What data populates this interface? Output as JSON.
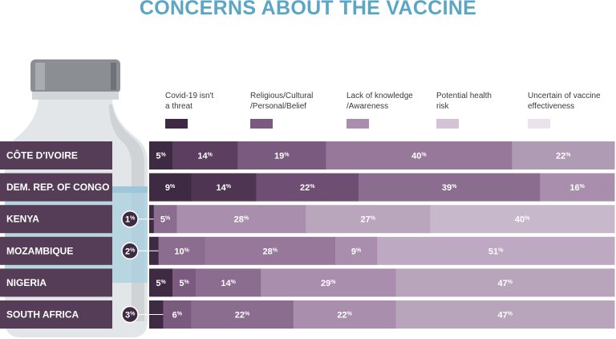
{
  "title": "CONCERNS ABOUT THE VACCINE",
  "chart_data": {
    "type": "bar",
    "orientation": "horizontal",
    "stacked": true,
    "title": "CONCERNS ABOUT THE VACCINE",
    "unit": "%",
    "legend_position": "top",
    "categories": [
      "CÔTE D'IVOIRE",
      "DEM. REP. OF CONGO",
      "KENYA",
      "MOZAMBIQUE",
      "NIGERIA",
      "SOUTH AFRICA"
    ],
    "series": [
      {
        "name": "Covid-19 isn't\na threat",
        "color": "#3e2a42",
        "values": [
          5,
          9,
          1,
          2,
          5,
          3
        ]
      },
      {
        "name": "Religious/Cultural\n/Personal/Belief",
        "color": "#7a5a7e",
        "values": [
          14,
          14,
          5,
          10,
          5,
          6
        ]
      },
      {
        "name": "Lack of knowledge\n/Awareness",
        "color": "#a98fad",
        "values": [
          19,
          22,
          28,
          28,
          14,
          22
        ]
      },
      {
        "name": "Potential health\nrisk",
        "color": "#d4c2d6",
        "values": [
          40,
          39,
          27,
          9,
          29,
          22
        ]
      },
      {
        "name": "Uncertain of vaccine\neffectiveness",
        "color": "#ebe3ec",
        "values": [
          22,
          16,
          40,
          51,
          47,
          47
        ]
      }
    ],
    "bar_colors": [
      [
        "#3e2a42",
        "#5c3f60",
        "#7a5a7e",
        "#97789b",
        "#b09bb5"
      ],
      [
        "#3e2a42",
        "#4e3552",
        "#6e4e72",
        "#8b6d8f",
        "#a98fad"
      ],
      [
        "#3e2a42",
        "#8b6d8f",
        "#a98fad",
        "#b9a6bd",
        "#c8b8cb"
      ],
      [
        "#3e2a42",
        "#8b6d8f",
        "#97789b",
        "#a98fad",
        "#bda9c1"
      ],
      [
        "#3e2a42",
        "#7a5a7e",
        "#8b6d8f",
        "#a98fad",
        "#b8a4bb"
      ],
      [
        "#3e2a42",
        "#7a5a7e",
        "#8b6d8f",
        "#a98fad",
        "#b8a4bb"
      ]
    ],
    "swatch_colors": [
      "#3e2a42",
      "#7a5a7e",
      "#a98fad",
      "#d4c2d6",
      "#ebe3ec"
    ],
    "country_box_color": "#553d57",
    "value_suffix": "%"
  }
}
